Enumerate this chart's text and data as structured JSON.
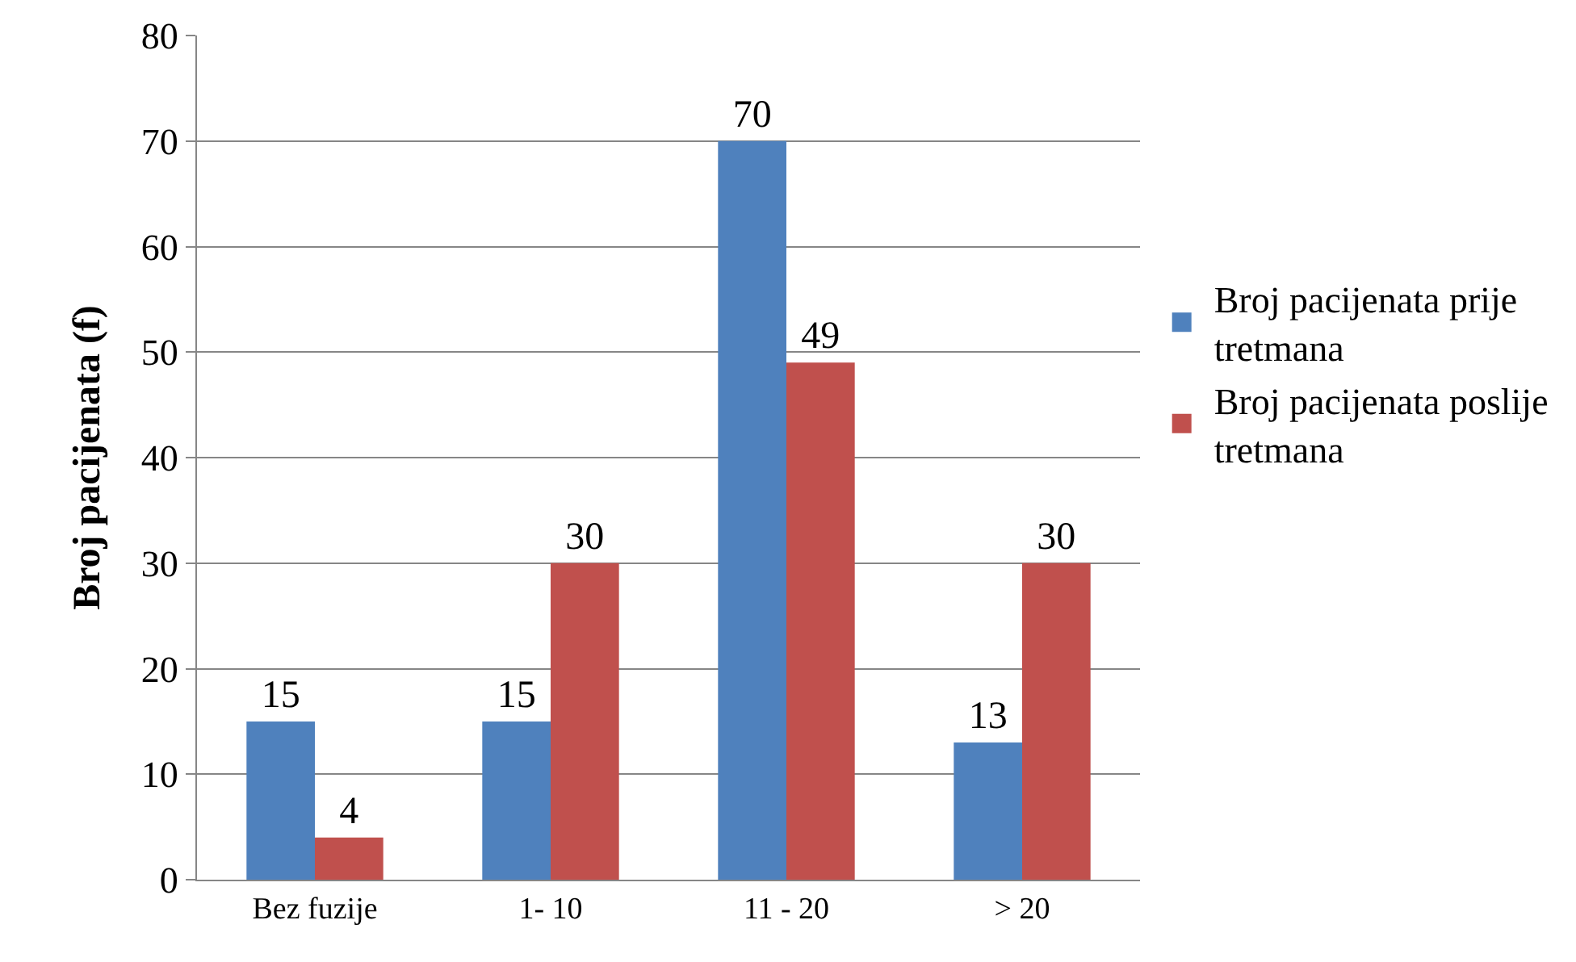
{
  "chart_data": {
    "type": "bar",
    "ylabel": "Broj pacijenata (f)",
    "categories": [
      "Bez fuzije",
      "1- 10",
      "11 - 20",
      "> 20"
    ],
    "series": [
      {
        "name": "Broj pacijenata prije tretmana",
        "color": "#4f81bd",
        "values": [
          15,
          15,
          70,
          13
        ]
      },
      {
        "name": "Broj pacijenata poslije tretmana",
        "color": "#c0504d",
        "values": [
          4,
          30,
          49,
          30
        ]
      }
    ],
    "ylim": [
      0,
      80
    ],
    "yticks": [
      0,
      10,
      20,
      30,
      40,
      50,
      60,
      70,
      80
    ],
    "grid": "y",
    "legend": "right",
    "data_labels": true
  }
}
